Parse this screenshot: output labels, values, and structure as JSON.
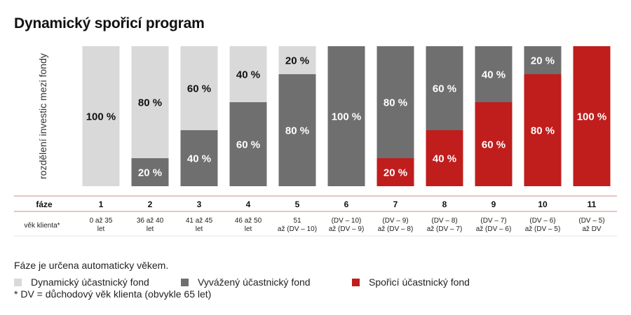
{
  "title": "Dynamický spořicí program",
  "notes": {
    "phase_note": "Fáze je určena automaticky věkem.",
    "dv_note": "* DV = důchodový věk klienta (obvykle 65 let)"
  },
  "chart_data": {
    "type": "bar",
    "stacked": true,
    "percent": true,
    "ylabel": "rozdělení investic mezi fondy",
    "ylim": [
      0,
      100
    ],
    "row_headers": {
      "phase": "fáze",
      "age": "věk klienta*"
    },
    "categories": [
      "1",
      "2",
      "3",
      "4",
      "5",
      "6",
      "7",
      "8",
      "9",
      "10",
      "11"
    ],
    "age_ranges": [
      [
        "0 až 35",
        "let"
      ],
      [
        "36 až 40",
        "let"
      ],
      [
        "41 až 45",
        "let"
      ],
      [
        "46 až 50",
        "let"
      ],
      [
        "51",
        "až (DV – 10)"
      ],
      [
        "(DV – 10)",
        "až (DV – 9)"
      ],
      [
        "(DV – 9)",
        "až (DV – 8)"
      ],
      [
        "(DV – 8)",
        "až (DV – 7)"
      ],
      [
        "(DV – 7)",
        "až (DV – 6)"
      ],
      [
        "(DV – 6)",
        "až (DV – 5)"
      ],
      [
        "(DV – 5)",
        "až DV"
      ]
    ],
    "series": [
      {
        "name": "Spořicí účastnický fond",
        "color": "#c01d1d",
        "label_color": "#ffffff",
        "values": [
          0,
          0,
          0,
          0,
          0,
          0,
          20,
          40,
          60,
          80,
          100
        ]
      },
      {
        "name": "Vyvážený účastnický fond",
        "color": "#6f6f6f",
        "label_color": "#ffffff",
        "values": [
          0,
          20,
          40,
          60,
          80,
          100,
          80,
          60,
          40,
          20,
          0
        ]
      },
      {
        "name": "Dynamický účastnický fond",
        "color": "#d9d9d9",
        "label_color": "#111111",
        "values": [
          100,
          80,
          60,
          40,
          20,
          0,
          0,
          0,
          0,
          0,
          0
        ]
      }
    ],
    "legend_order": [
      2,
      1,
      0
    ],
    "legend_position": "bottom-left",
    "grid": false
  }
}
